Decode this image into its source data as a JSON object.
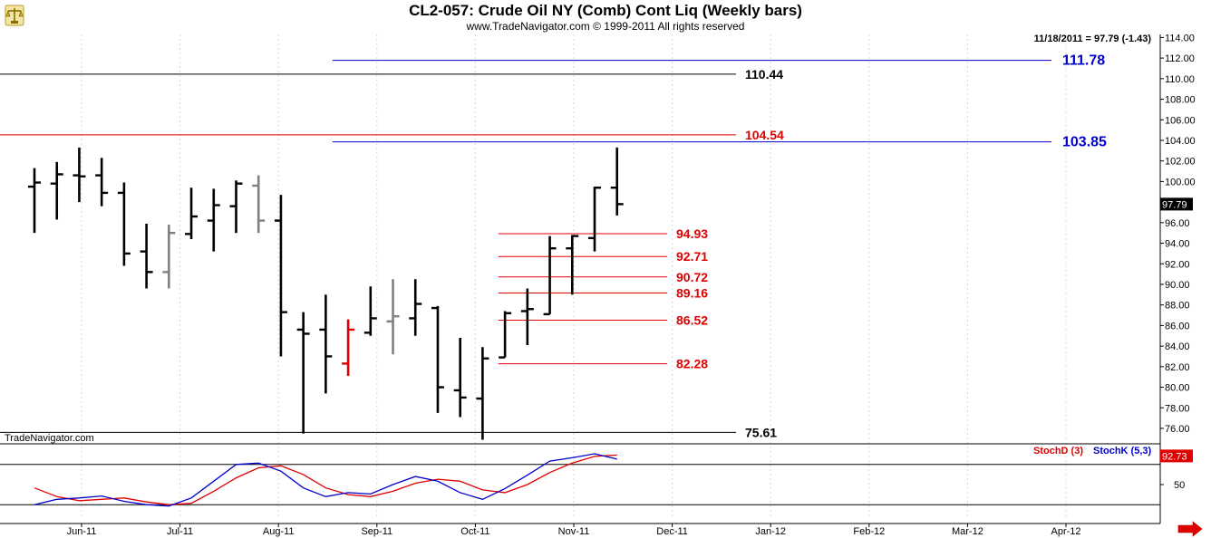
{
  "header": {
    "title": "CL2-057:  Crude Oil NY (Comb) Cont Liq  (Weekly bars)",
    "subtitle": "www.TradeNavigator.com © 1999-2011 All rights reserved",
    "last_quote": "11/18/2011 = 97.79 (-1.43)"
  },
  "watermark": "TradeNavigator.com",
  "logo_icon": "trading-scales-logo-icon",
  "nav_arrow_icon": "red-arrow-right-icon",
  "chart_data": [
    {
      "type": "ohlc",
      "y_ticks": [
        76,
        78,
        80,
        82,
        84,
        86,
        88,
        90,
        92,
        94,
        96,
        98,
        100,
        102,
        104,
        106,
        108,
        110,
        112,
        114
      ],
      "ylim": [
        74.5,
        114.3
      ],
      "x_ticks": [
        "Jun-11",
        "Jul-11",
        "Aug-11",
        "Sep-11",
        "Oct-11",
        "Nov-11",
        "Dec-11",
        "Jan-12",
        "Feb-12",
        "Mar-12",
        "Apr-12"
      ],
      "current_price": "97.79",
      "colors": {
        "bar": "#000000",
        "bar_gray": "#808080",
        "bar_red": "#e00000",
        "level_red": "#e00000",
        "level_black": "#000000",
        "level_blue": "#0000cc"
      },
      "bars": [
        {
          "o": 99.5,
          "h": 101.3,
          "l": 95.0,
          "c": 99.9,
          "color": "black"
        },
        {
          "o": 99.8,
          "h": 101.9,
          "l": 96.3,
          "c": 100.7,
          "color": "black"
        },
        {
          "o": 100.6,
          "h": 103.3,
          "l": 98.0,
          "c": 100.5,
          "color": "black"
        },
        {
          "o": 100.6,
          "h": 102.3,
          "l": 97.6,
          "c": 98.9,
          "color": "black"
        },
        {
          "o": 98.9,
          "h": 99.9,
          "l": 91.8,
          "c": 93.0,
          "color": "black"
        },
        {
          "o": 93.2,
          "h": 95.9,
          "l": 89.6,
          "c": 91.2,
          "color": "black"
        },
        {
          "o": 91.2,
          "h": 95.8,
          "l": 89.6,
          "c": 95.0,
          "color": "gray"
        },
        {
          "o": 94.9,
          "h": 99.4,
          "l": 94.4,
          "c": 96.6,
          "color": "black"
        },
        {
          "o": 96.2,
          "h": 99.3,
          "l": 93.2,
          "c": 97.7,
          "color": "black"
        },
        {
          "o": 97.6,
          "h": 100.1,
          "l": 95.0,
          "c": 99.8,
          "color": "black"
        },
        {
          "o": 99.6,
          "h": 100.6,
          "l": 95.0,
          "c": 96.2,
          "color": "gray"
        },
        {
          "o": 96.2,
          "h": 98.7,
          "l": 83.0,
          "c": 87.3,
          "color": "black"
        },
        {
          "o": 85.6,
          "h": 87.3,
          "l": 75.5,
          "c": 85.2,
          "color": "black"
        },
        {
          "o": 85.6,
          "h": 89.0,
          "l": 79.4,
          "c": 83.0,
          "color": "black"
        },
        {
          "o": 82.3,
          "h": 86.6,
          "l": 81.1,
          "c": 85.6,
          "color": "red"
        },
        {
          "o": 85.3,
          "h": 89.8,
          "l": 85.0,
          "c": 86.7,
          "color": "black"
        },
        {
          "o": 86.4,
          "h": 90.5,
          "l": 83.2,
          "c": 86.9,
          "color": "gray"
        },
        {
          "o": 86.7,
          "h": 90.5,
          "l": 85.0,
          "c": 88.1,
          "color": "black"
        },
        {
          "o": 87.7,
          "h": 87.9,
          "l": 77.5,
          "c": 80.0,
          "color": "black"
        },
        {
          "o": 79.7,
          "h": 84.8,
          "l": 77.1,
          "c": 79.0,
          "color": "black"
        },
        {
          "o": 78.9,
          "h": 83.9,
          "l": 74.9,
          "c": 82.8,
          "color": "black"
        },
        {
          "o": 82.9,
          "h": 87.4,
          "l": 82.9,
          "c": 87.2,
          "color": "black"
        },
        {
          "o": 87.4,
          "h": 89.6,
          "l": 84.1,
          "c": 87.6,
          "color": "black"
        },
        {
          "o": 87.1,
          "h": 94.7,
          "l": 87.1,
          "c": 93.5,
          "color": "black"
        },
        {
          "o": 93.5,
          "h": 94.8,
          "l": 89.0,
          "c": 94.7,
          "color": "black"
        },
        {
          "o": 94.5,
          "h": 99.5,
          "l": 93.2,
          "c": 99.4,
          "color": "black"
        },
        {
          "o": 99.4,
          "h": 103.3,
          "l": 96.7,
          "c": 97.8,
          "color": "black"
        }
      ],
      "levels": [
        {
          "value": 111.78,
          "label": "111.78",
          "color": "blue",
          "size": "big",
          "start_bar": 13.3
        },
        {
          "value": 110.44,
          "label": "110.44",
          "color": "black",
          "size": "normal",
          "start_bar": -2
        },
        {
          "value": 104.54,
          "label": "104.54",
          "color": "red",
          "size": "normal",
          "start_bar": -2
        },
        {
          "value": 103.85,
          "label": "103.85",
          "color": "blue",
          "size": "big",
          "start_bar": 13.3
        },
        {
          "value": 94.93,
          "label": "94.93",
          "color": "red",
          "size": "normal",
          "start_bar": 20.7
        },
        {
          "value": 92.71,
          "label": "92.71",
          "color": "red",
          "size": "normal",
          "start_bar": 20.7
        },
        {
          "value": 90.72,
          "label": "90.72",
          "color": "red",
          "size": "normal",
          "start_bar": 20.7
        },
        {
          "value": 89.16,
          "label": "89.16",
          "color": "red",
          "size": "normal",
          "start_bar": 20.7
        },
        {
          "value": 86.52,
          "label": "86.52",
          "color": "red",
          "size": "normal",
          "start_bar": 20.7
        },
        {
          "value": 82.28,
          "label": "82.28",
          "color": "red",
          "size": "normal",
          "start_bar": 20.7
        },
        {
          "value": 75.61,
          "label": "75.61",
          "color": "black",
          "size": "normal",
          "start_bar": -2
        }
      ]
    },
    {
      "type": "line",
      "ylim": [
        0,
        100
      ],
      "y_ticks": [
        50
      ],
      "reference_lines": [
        80,
        20
      ],
      "current_value": "92.73",
      "series": [
        {
          "name": "StochD (3)",
          "color": "#e00000",
          "values": [
            45,
            32,
            26,
            28,
            30,
            24,
            20,
            22,
            40,
            60,
            75,
            78,
            65,
            45,
            35,
            32,
            40,
            52,
            58,
            55,
            42,
            38,
            50,
            68,
            82,
            92,
            94
          ]
        },
        {
          "name": "StochK (5,3)",
          "color": "#0000cc",
          "values": [
            20,
            28,
            30,
            33,
            25,
            20,
            18,
            30,
            55,
            80,
            82,
            70,
            45,
            32,
            38,
            36,
            50,
            62,
            55,
            38,
            28,
            44,
            64,
            85,
            90,
            96,
            88
          ]
        }
      ]
    }
  ]
}
